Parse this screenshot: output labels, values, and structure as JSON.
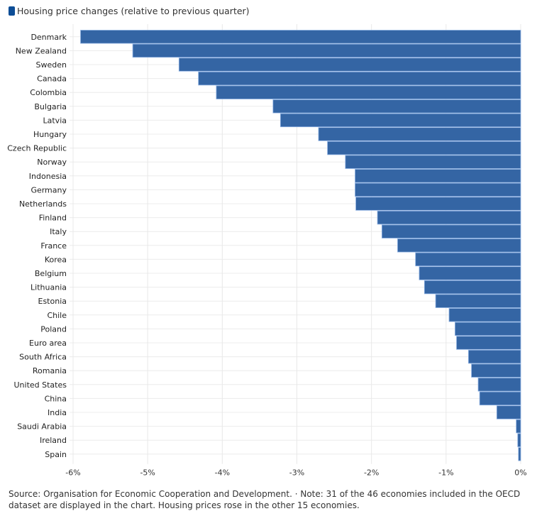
{
  "chart_data": {
    "type": "bar",
    "orientation": "horizontal",
    "title": "",
    "legend": [
      {
        "label": "Housing price changes (relative to previous quarter)",
        "color": "#3465a4"
      }
    ],
    "legend_placement": "top-left",
    "xlabel": "",
    "ylabel": "",
    "xlim": [
      -6,
      0
    ],
    "x_ticks": [
      -6,
      -5,
      -4,
      -3,
      -2,
      -1,
      0
    ],
    "x_tick_labels": [
      "-6%",
      "-5%",
      "-4%",
      "-3%",
      "-2%",
      "-1%",
      "0%"
    ],
    "grid": true,
    "categories": [
      "Denmark",
      "New Zealand",
      "Sweden",
      "Canada",
      "Colombia",
      "Bulgaria",
      "Latvia",
      "Hungary",
      "Czech Republic",
      "Norway",
      "Indonesia",
      "Germany",
      "Netherlands",
      "Finland",
      "Italy",
      "France",
      "Korea",
      "Belgium",
      "Lithuania",
      "Estonia",
      "Chile",
      "Poland",
      "Euro area",
      "South Africa",
      "Romania",
      "United States",
      "China",
      "India",
      "Saudi Arabia",
      "Ireland",
      "Spain"
    ],
    "series": [
      {
        "name": "Housing price changes (relative to previous quarter)",
        "values": [
          -5.9,
          -5.2,
          -4.58,
          -4.32,
          -4.08,
          -3.32,
          -3.22,
          -2.71,
          -2.59,
          -2.35,
          -2.22,
          -2.22,
          -2.21,
          -1.92,
          -1.86,
          -1.65,
          -1.41,
          -1.36,
          -1.29,
          -1.14,
          -0.96,
          -0.88,
          -0.86,
          -0.7,
          -0.66,
          -0.57,
          -0.55,
          -0.32,
          -0.06,
          -0.04,
          -0.03
        ],
        "color": "#3465a4"
      }
    ],
    "unit": "%"
  },
  "footer": {
    "text": "Source: Organisation for Economic Cooperation and Development. · Note: 31 of the 46 economies included in the OECD dataset are displayed in the chart. Housing prices rose in the other 15 economies."
  }
}
